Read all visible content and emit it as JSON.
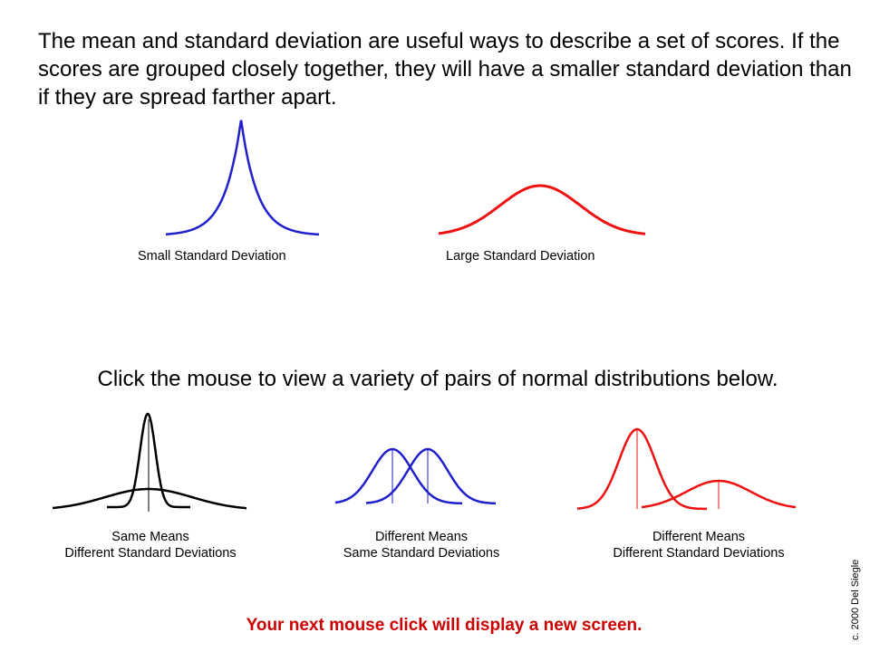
{
  "intro_text": "The mean and standard deviation are useful ways to describe a set of scores. If the scores are grouped closely together, they will have a smaller standard deviation than if they are spread farther apart.",
  "top_examples": {
    "small": {
      "label": "Small Standard Deviation",
      "color": "#1f1fcc"
    },
    "large": {
      "label": "Large Standard Deviation",
      "color": "#ee1111"
    }
  },
  "instruction": "Click the mouse to view a variety of pairs of normal distributions below.",
  "pairs": [
    {
      "line1": "Same Means",
      "line2": "Different Standard Deviations",
      "color": "#000000"
    },
    {
      "line1": "Different Means",
      "line2": "Same Standard Deviations",
      "color": "#1f1fcc"
    },
    {
      "line1": "Different Means",
      "line2": "Different Standard Deviations",
      "color": "#ee1111"
    }
  ],
  "footer": "Your next mouse click will display a new screen.",
  "footer_color": "#cc0000",
  "credit": "c. 2000 Del Siegle"
}
